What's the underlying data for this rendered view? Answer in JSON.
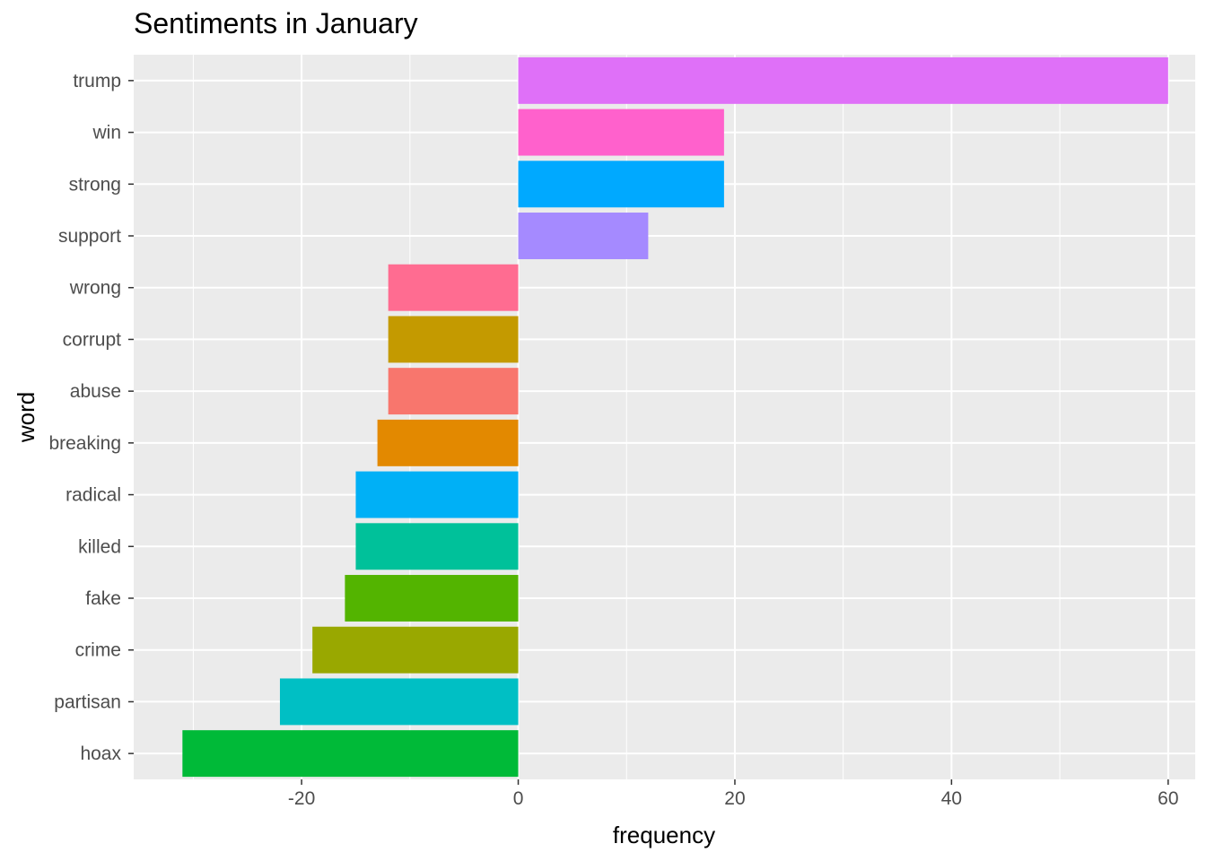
{
  "chart_data": {
    "type": "bar",
    "orientation": "horizontal",
    "title": "Sentiments in January",
    "xlabel": "frequency",
    "ylabel": "word",
    "xlim": [
      -35.5,
      62.5
    ],
    "xticks": [
      -20,
      0,
      20,
      40,
      60
    ],
    "xtick_labels": [
      "-20",
      "0",
      "20",
      "40",
      "60"
    ],
    "grid": true,
    "legend": "none",
    "categories": [
      "trump",
      "win",
      "strong",
      "support",
      "wrong",
      "corrupt",
      "abuse",
      "breaking",
      "radical",
      "killed",
      "fake",
      "crime",
      "partisan",
      "hoax"
    ],
    "values": [
      60,
      19,
      19,
      12,
      -12,
      -12,
      -12,
      -13,
      -15,
      -15,
      -16,
      -19,
      -22,
      -31
    ],
    "colors": [
      "#DF70F8",
      "#FF61CC",
      "#00A9FF",
      "#A58AFF",
      "#FF6C91",
      "#C49A00",
      "#F8766D",
      "#E38900",
      "#00B0F6",
      "#00C19A",
      "#53B400",
      "#99A800",
      "#00BFC4",
      "#00BA38"
    ]
  }
}
